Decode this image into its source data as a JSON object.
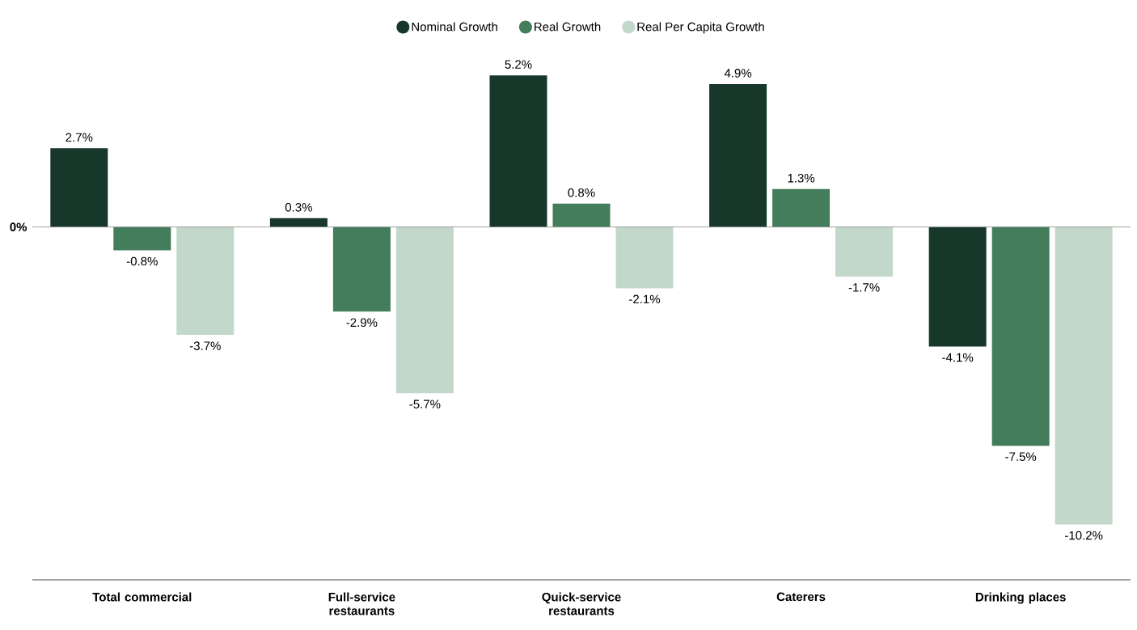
{
  "chart_data": {
    "type": "bar",
    "categories": [
      "Total commercial",
      "Full-service restaurants",
      "Quick-service restaurants",
      "Caterers",
      "Drinking places"
    ],
    "series": [
      {
        "name": "Nominal Growth",
        "color": "#16372a",
        "values": [
          2.7,
          0.3,
          5.2,
          4.9,
          -4.1
        ],
        "value_labels": [
          "2.7%",
          "0.3%",
          "5.2%",
          "4.9%",
          "-4.1%"
        ]
      },
      {
        "name": "Real Growth",
        "color": "#437d5b",
        "values": [
          -0.8,
          -2.9,
          0.8,
          1.3,
          -7.5
        ],
        "value_labels": [
          "-0.8%",
          "-2.9%",
          "0.8%",
          "1.3%",
          "-7.5%"
        ]
      },
      {
        "name": "Real Per Capita Growth",
        "color": "#c2d8cb",
        "values": [
          -3.7,
          -5.7,
          -2.1,
          -1.7,
          -10.2
        ],
        "value_labels": [
          "-3.7%",
          "-5.7%",
          "-2.1%",
          "-1.7%",
          "-10.2%"
        ]
      }
    ],
    "ref_lines": [
      {
        "axis": "y",
        "value": 0,
        "label": "0%",
        "color": "#8c8c8c"
      }
    ],
    "legend": "top"
  }
}
